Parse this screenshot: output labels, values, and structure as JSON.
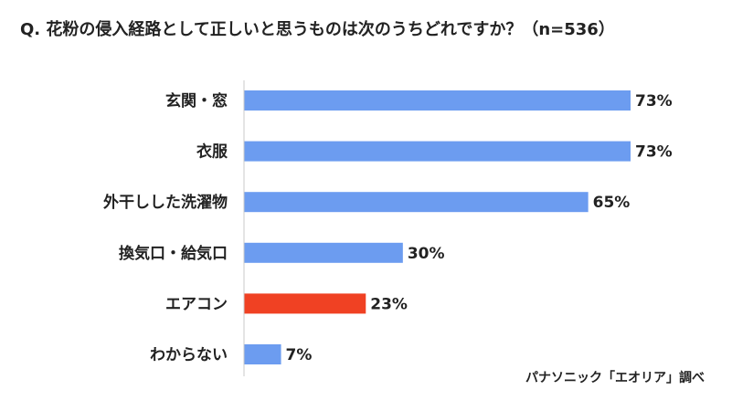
{
  "question": "Q. 花粉の侵入経路として正しいと思うものは次のうちどれですか？（n=536）",
  "source": "パナソニック「エオリア」調べ",
  "colors": {
    "default_bar": "#6c9cf0",
    "highlight_bar": "#f04123"
  },
  "chart_data": {
    "type": "bar",
    "orientation": "horizontal",
    "title": "Q. 花粉の侵入経路として正しいと思うものは次のうちどれですか？（n=536）",
    "categories": [
      "玄関・窓",
      "衣服",
      "外干しした洗濯物",
      "換気口・給気口",
      "エアコン",
      "わからない"
    ],
    "values": [
      73,
      73,
      65,
      30,
      23,
      7
    ],
    "value_labels": [
      "73%",
      "73%",
      "65%",
      "30%",
      "23%",
      "7%"
    ],
    "unit": "%",
    "xlim": [
      0,
      73
    ],
    "highlight_index": 4,
    "grid": false,
    "legend": "none"
  }
}
